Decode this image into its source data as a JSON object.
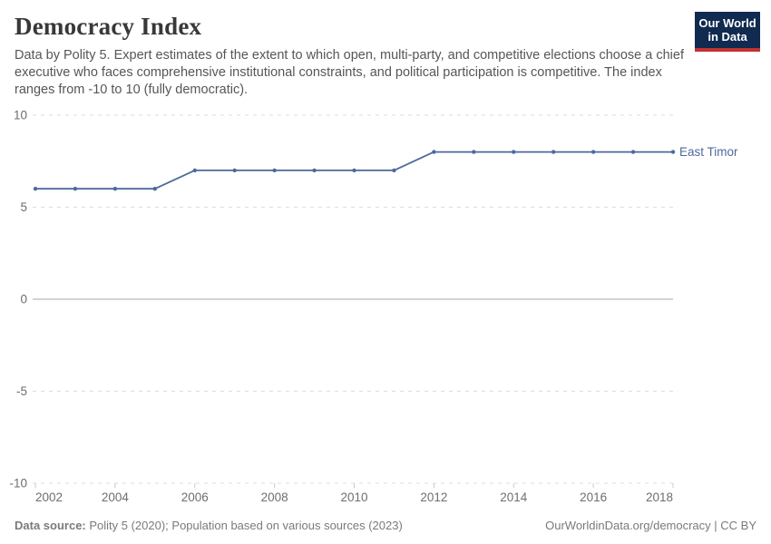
{
  "header": {
    "title": "Democracy Index",
    "subtitle": "Data by Polity 5. Expert estimates of the extent to which open, multi-party, and competitive elections choose a chief executive who faces comprehensive institutional constraints, and political participation is competitive. The index ranges from -10 to 10 (fully democratic).",
    "logo_line1": "Our World",
    "logo_line2": "in Data"
  },
  "footer": {
    "source_label": "Data source:",
    "source_text": " Polity 5 (2020); Population based on various sources (2023)",
    "right_text": "OurWorldinData.org/democracy | CC BY"
  },
  "chart_data": {
    "type": "line",
    "x": [
      2002,
      2003,
      2004,
      2005,
      2006,
      2007,
      2008,
      2009,
      2010,
      2011,
      2012,
      2013,
      2014,
      2015,
      2016,
      2017,
      2018
    ],
    "series": [
      {
        "name": "East Timor",
        "values": [
          6,
          6,
          6,
          6,
          7,
          7,
          7,
          7,
          7,
          7,
          8,
          8,
          8,
          8,
          8,
          8,
          8
        ],
        "color": "#4C6A9C"
      }
    ],
    "title": "Democracy Index",
    "xlabel": "",
    "ylabel": "",
    "xlim": [
      2002,
      2018
    ],
    "ylim": [
      -10,
      10
    ],
    "x_ticks": [
      2002,
      2004,
      2006,
      2008,
      2010,
      2012,
      2014,
      2016,
      2018
    ],
    "y_ticks": [
      10,
      5,
      0,
      -5,
      -10
    ],
    "grid": "horizontal dashed, solid zero line",
    "legend_position": "end-of-line label",
    "colors": {
      "grid": "#dcdcdc",
      "zero_line": "#a8a8a8",
      "tick_mark": "#c8c8c8",
      "axis_label": "#6e6e6e",
      "series_label": "#4C6A9C"
    }
  }
}
